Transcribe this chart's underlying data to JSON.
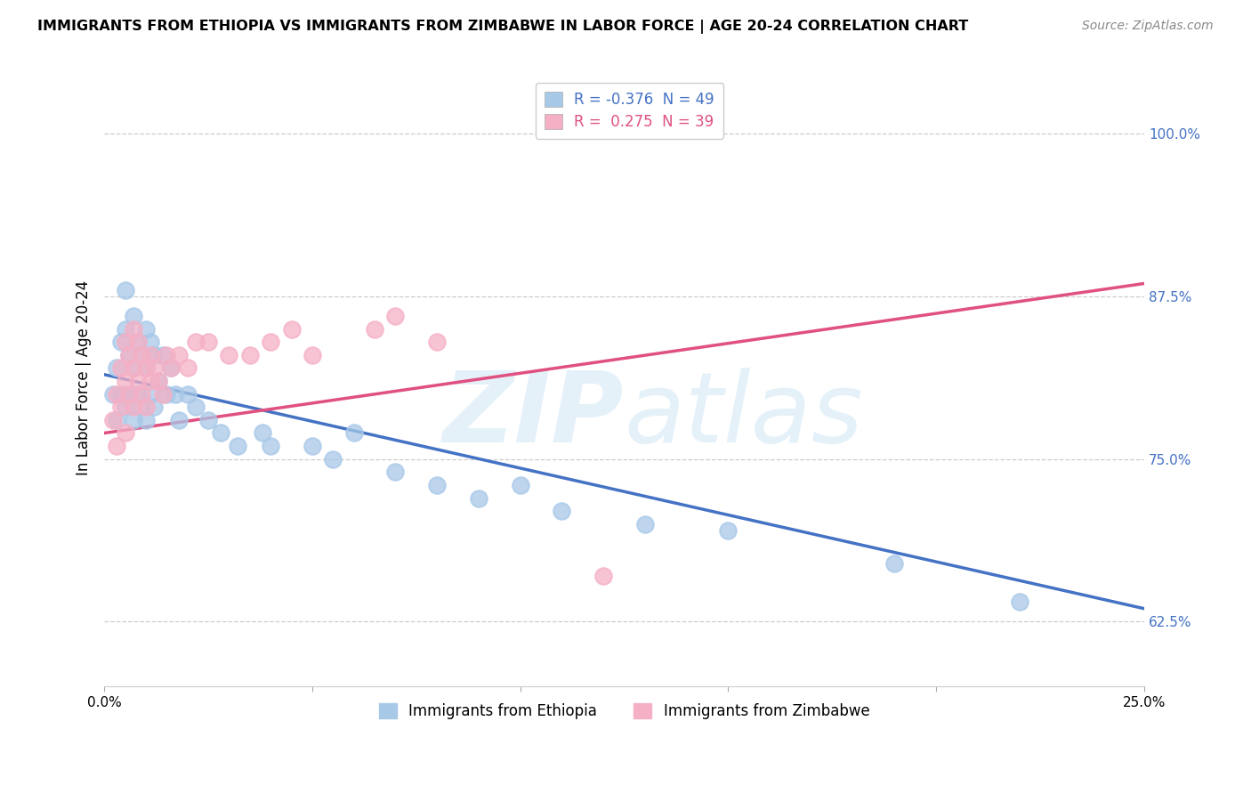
{
  "title": "IMMIGRANTS FROM ETHIOPIA VS IMMIGRANTS FROM ZIMBABWE IN LABOR FORCE | AGE 20-24 CORRELATION CHART",
  "source": "Source: ZipAtlas.com",
  "ylabel": "In Labor Force | Age 20-24",
  "xlim": [
    0.0,
    0.25
  ],
  "ylim": [
    0.575,
    1.05
  ],
  "ethiopia_R": -0.376,
  "ethiopia_N": 49,
  "zimbabwe_R": 0.275,
  "zimbabwe_N": 39,
  "ethiopia_color": "#a8c8e8",
  "zimbabwe_color": "#f5b0c5",
  "ethiopia_line_color": "#4472c4",
  "zimbabwe_line_color": "#e05080",
  "y_ticks": [
    0.625,
    0.75,
    0.875,
    1.0
  ],
  "y_tick_labels": [
    "62.5%",
    "75.0%",
    "87.5%",
    "100.0%"
  ],
  "x_ticks": [
    0.0,
    0.05,
    0.1,
    0.15,
    0.2,
    0.25
  ],
  "x_tick_labels": [
    "0.0%",
    "",
    "",
    "",
    "",
    "25.0%"
  ],
  "ethiopia_x": [
    0.002,
    0.003,
    0.003,
    0.004,
    0.004,
    0.005,
    0.005,
    0.005,
    0.006,
    0.006,
    0.007,
    0.007,
    0.007,
    0.008,
    0.008,
    0.009,
    0.009,
    0.01,
    0.01,
    0.01,
    0.011,
    0.011,
    0.012,
    0.012,
    0.013,
    0.014,
    0.015,
    0.016,
    0.017,
    0.018,
    0.02,
    0.022,
    0.025,
    0.028,
    0.032,
    0.038,
    0.04,
    0.05,
    0.055,
    0.06,
    0.07,
    0.08,
    0.09,
    0.1,
    0.11,
    0.13,
    0.15,
    0.19,
    0.22
  ],
  "ethiopia_y": [
    0.8,
    0.82,
    0.78,
    0.84,
    0.8,
    0.88,
    0.85,
    0.79,
    0.83,
    0.8,
    0.86,
    0.82,
    0.78,
    0.84,
    0.8,
    0.83,
    0.79,
    0.85,
    0.82,
    0.78,
    0.84,
    0.8,
    0.83,
    0.79,
    0.81,
    0.83,
    0.8,
    0.82,
    0.8,
    0.78,
    0.8,
    0.79,
    0.78,
    0.77,
    0.76,
    0.77,
    0.76,
    0.76,
    0.75,
    0.77,
    0.74,
    0.73,
    0.72,
    0.73,
    0.71,
    0.7,
    0.695,
    0.67,
    0.64
  ],
  "zimbabwe_x": [
    0.002,
    0.003,
    0.003,
    0.004,
    0.004,
    0.005,
    0.005,
    0.005,
    0.006,
    0.006,
    0.007,
    0.007,
    0.007,
    0.008,
    0.008,
    0.009,
    0.009,
    0.01,
    0.01,
    0.011,
    0.011,
    0.012,
    0.013,
    0.014,
    0.015,
    0.016,
    0.018,
    0.02,
    0.022,
    0.025,
    0.03,
    0.035,
    0.04,
    0.045,
    0.05,
    0.065,
    0.07,
    0.08,
    0.12
  ],
  "zimbabwe_y": [
    0.78,
    0.8,
    0.76,
    0.82,
    0.79,
    0.84,
    0.81,
    0.77,
    0.83,
    0.8,
    0.85,
    0.82,
    0.79,
    0.84,
    0.81,
    0.83,
    0.8,
    0.82,
    0.79,
    0.83,
    0.81,
    0.82,
    0.81,
    0.8,
    0.83,
    0.82,
    0.83,
    0.82,
    0.84,
    0.84,
    0.83,
    0.83,
    0.84,
    0.85,
    0.83,
    0.85,
    0.86,
    0.84,
    0.66
  ],
  "eth_line_x0": 0.0,
  "eth_line_x1": 0.25,
  "eth_line_y0": 0.815,
  "eth_line_y1": 0.635,
  "zim_line_x0": 0.0,
  "zim_line_x1": 0.25,
  "zim_line_y0": 0.77,
  "zim_line_y1": 0.885
}
